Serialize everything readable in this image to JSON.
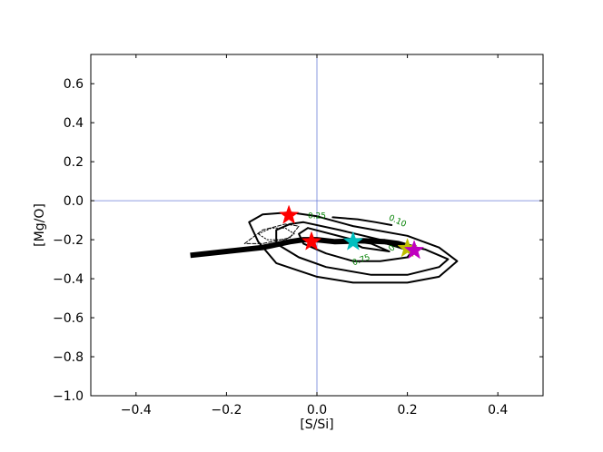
{
  "chart_data": {
    "type": "contour",
    "title": "",
    "xlabel": "[S/Si]",
    "ylabel": "[Mg/O]",
    "xlim": [
      -0.5,
      0.5
    ],
    "ylim": [
      -1.0,
      0.75
    ],
    "xticks": [
      -0.4,
      -0.2,
      0.0,
      0.2,
      0.4
    ],
    "xtick_labels": [
      "−0.4",
      "−0.2",
      "0.0",
      "0.2",
      "0.4"
    ],
    "yticks": [
      -1.0,
      -0.8,
      -0.6,
      -0.4,
      -0.2,
      0.0,
      0.2,
      0.4,
      0.6
    ],
    "ytick_labels": [
      "−1.0",
      "−0.8",
      "−0.6",
      "−0.4",
      "−0.2",
      "0.0",
      "0.2",
      "0.4",
      "0.6"
    ],
    "grid": false,
    "reference_lines": {
      "x": 0.0,
      "y": 0.0,
      "color": "#6b7fd7"
    },
    "contour_labels": [
      {
        "text": "0.10",
        "x": 0.178,
        "y": -0.105,
        "rotation": 25
      },
      {
        "text": "0.25",
        "x": 0.0,
        "y": -0.078,
        "rotation": 0
      },
      {
        "text": "0.75",
        "x": 0.098,
        "y": -0.305,
        "rotation": -20
      },
      {
        "text": "0.",
        "x": 0.168,
        "y": -0.24,
        "rotation": -45
      }
    ],
    "series": [
      {
        "kind": "contour",
        "style": "solid",
        "values": [
          [
            -0.06,
            -0.06
          ],
          [
            -0.12,
            -0.07
          ],
          [
            -0.15,
            -0.11
          ],
          [
            -0.13,
            -0.21
          ],
          [
            -0.09,
            -0.32
          ],
          [
            0.0,
            -0.39
          ],
          [
            0.08,
            -0.42
          ],
          [
            0.2,
            -0.42
          ],
          [
            0.27,
            -0.39
          ],
          [
            0.31,
            -0.31
          ],
          [
            0.27,
            -0.24
          ],
          [
            0.2,
            -0.18
          ],
          [
            0.08,
            -0.13
          ],
          [
            0.0,
            -0.08
          ],
          [
            -0.06,
            -0.06
          ]
        ]
      },
      {
        "kind": "contour",
        "style": "solid",
        "values": [
          [
            -0.03,
            -0.11
          ],
          [
            -0.06,
            -0.12
          ],
          [
            -0.09,
            -0.15
          ],
          [
            -0.09,
            -0.22
          ],
          [
            -0.04,
            -0.29
          ],
          [
            0.02,
            -0.34
          ],
          [
            0.12,
            -0.38
          ],
          [
            0.2,
            -0.38
          ],
          [
            0.27,
            -0.34
          ],
          [
            0.29,
            -0.3
          ],
          [
            0.24,
            -0.25
          ],
          [
            0.14,
            -0.2
          ],
          [
            0.05,
            -0.15
          ],
          [
            -0.03,
            -0.11
          ]
        ]
      },
      {
        "kind": "contour",
        "style": "solid",
        "values": [
          [
            -0.02,
            -0.14
          ],
          [
            -0.04,
            -0.17
          ],
          [
            -0.03,
            -0.22
          ],
          [
            0.02,
            -0.27
          ],
          [
            0.08,
            -0.31
          ],
          [
            0.14,
            -0.31
          ],
          [
            0.2,
            -0.29
          ],
          [
            0.21,
            -0.26
          ],
          [
            0.14,
            -0.21
          ],
          [
            0.08,
            -0.2
          ],
          [
            -0.02,
            -0.14
          ]
        ]
      },
      {
        "kind": "contour",
        "style": "solid",
        "values": [
          [
            0.07,
            -0.205
          ],
          [
            0.1,
            -0.24
          ],
          [
            0.16,
            -0.26
          ],
          [
            0.12,
            -0.22
          ],
          [
            0.07,
            -0.205
          ]
        ]
      },
      {
        "kind": "contour",
        "style": "solid",
        "values": [
          [
            0.035,
            -0.085
          ],
          [
            0.09,
            -0.095
          ],
          [
            0.13,
            -0.11
          ],
          [
            0.165,
            -0.125
          ]
        ]
      },
      {
        "kind": "contour",
        "style": "dotted",
        "values": [
          [
            -0.13,
            -0.17
          ],
          [
            -0.1,
            -0.14
          ],
          [
            -0.07,
            -0.14
          ],
          [
            -0.05,
            -0.17
          ],
          [
            -0.07,
            -0.2
          ],
          [
            -0.11,
            -0.2
          ],
          [
            -0.13,
            -0.17
          ]
        ]
      },
      {
        "kind": "contour",
        "style": "dashed",
        "values": [
          [
            -0.16,
            -0.22
          ],
          [
            -0.12,
            -0.15
          ],
          [
            -0.07,
            -0.12
          ],
          [
            -0.04,
            -0.13
          ],
          [
            -0.06,
            -0.19
          ],
          [
            -0.12,
            -0.22
          ],
          [
            -0.16,
            -0.22
          ]
        ]
      },
      {
        "kind": "track",
        "style": "thick",
        "values": [
          [
            -0.28,
            -0.28
          ],
          [
            -0.2,
            -0.26
          ],
          [
            -0.12,
            -0.24
          ],
          [
            -0.06,
            -0.21
          ],
          [
            -0.03,
            -0.2
          ],
          [
            0.0,
            -0.2
          ],
          [
            0.04,
            -0.21
          ],
          [
            0.1,
            -0.205
          ],
          [
            0.15,
            -0.21
          ],
          [
            0.18,
            -0.22
          ],
          [
            0.21,
            -0.24
          ]
        ]
      }
    ],
    "markers": [
      {
        "x": -0.062,
        "y": -0.075,
        "color": "#ff0000"
      },
      {
        "x": -0.012,
        "y": -0.21,
        "color": "#ff0000"
      },
      {
        "x": 0.08,
        "y": -0.21,
        "color": "#00bfbf"
      },
      {
        "x": 0.2,
        "y": -0.245,
        "color": "#bfbf00"
      },
      {
        "x": 0.215,
        "y": -0.255,
        "color": "#bf00bf"
      }
    ]
  }
}
